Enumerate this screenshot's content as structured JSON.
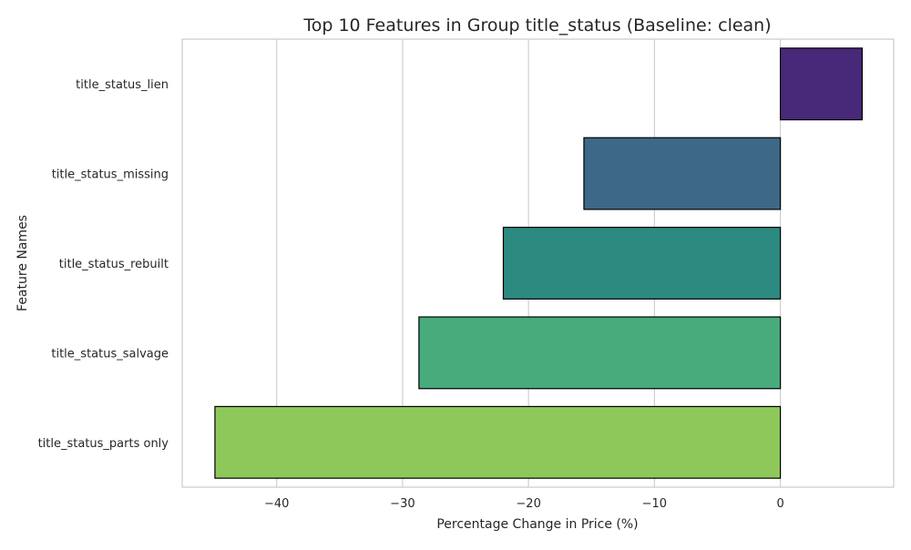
{
  "chart_data": {
    "type": "bar",
    "orientation": "horizontal",
    "title": "Top 10 Features in Group title_status (Baseline: clean)",
    "xlabel": "Percentage Change in Price (%)",
    "ylabel": "Feature Names",
    "categories": [
      "title_status_lien",
      "title_status_missing",
      "title_status_rebuilt",
      "title_status_salvage",
      "title_status_parts only"
    ],
    "values": [
      6.5,
      -15.6,
      -22.0,
      -28.7,
      -44.9
    ],
    "colors": [
      "#482878",
      "#3e6887",
      "#2c8a80",
      "#48ab7b",
      "#8fc85a"
    ],
    "xlim": [
      -47.5,
      9.0
    ],
    "x_ticks": [
      -40,
      -30,
      -20,
      -10,
      0
    ],
    "x_tick_labels": [
      "−40",
      "−30",
      "−20",
      "−10",
      "0"
    ],
    "grid": "vertical",
    "legend": "none"
  }
}
